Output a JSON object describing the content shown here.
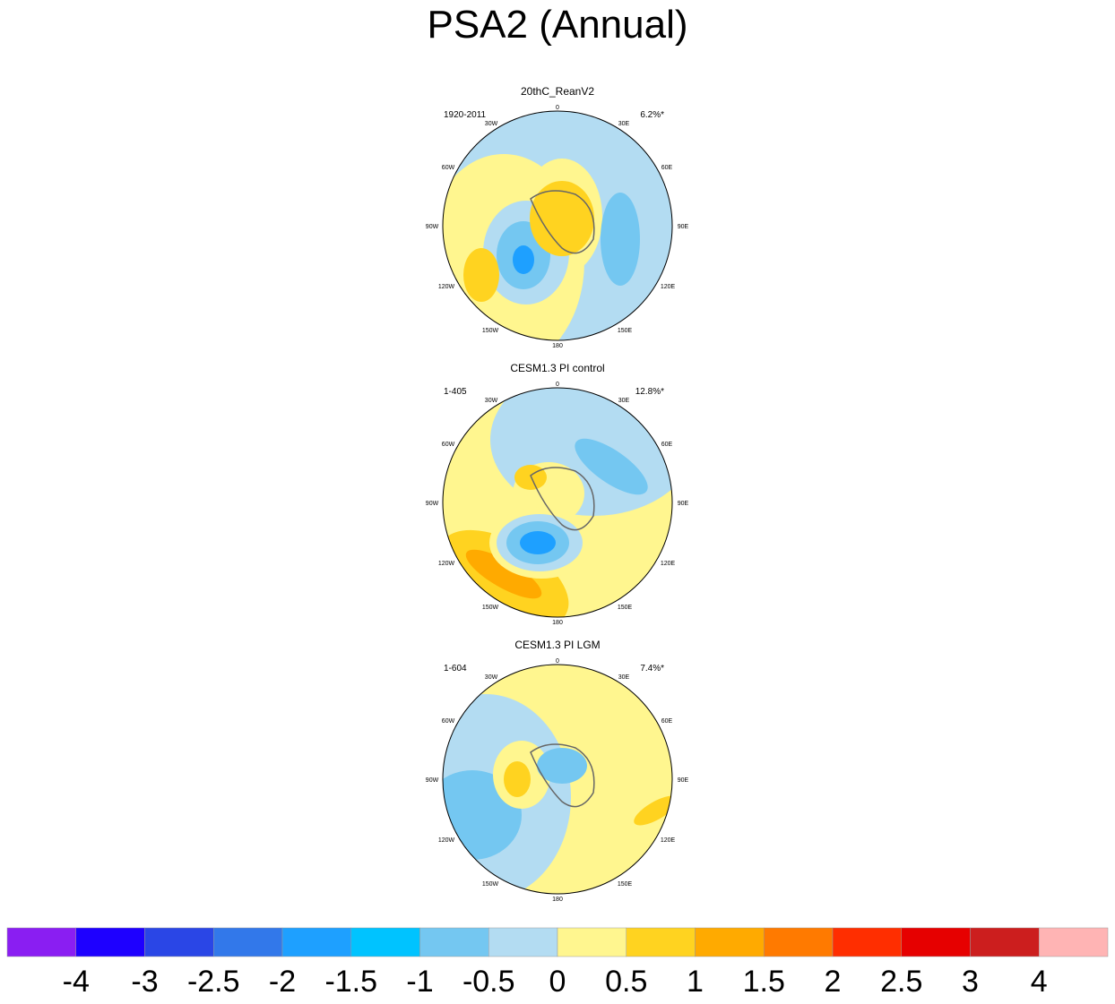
{
  "title": "PSA2 (Annual)",
  "panels": [
    {
      "title": "20thC_ReanV2",
      "period": "1920-2011",
      "variance": "6.2%*",
      "longitudes": [
        "0",
        "30E",
        "60E",
        "90E",
        "120E",
        "150E",
        "180",
        "150W",
        "120W",
        "90W",
        "60W",
        "30W"
      ]
    },
    {
      "title": "CESM1.3 PI control",
      "period": "1-405",
      "variance": "12.8%*",
      "longitudes": [
        "0",
        "30E",
        "60E",
        "90E",
        "120E",
        "150E",
        "180",
        "150W",
        "120W",
        "90W",
        "60W",
        "30W"
      ]
    },
    {
      "title": "CESM1.3 PI LGM",
      "period": "1-604",
      "variance": "7.4%*",
      "longitudes": [
        "0",
        "30E",
        "60E",
        "90E",
        "120E",
        "150E",
        "180",
        "150W",
        "120W",
        "90W",
        "60W",
        "30W"
      ]
    }
  ],
  "colorbar": {
    "labels": [
      "-4",
      "-3",
      "-2.5",
      "-2",
      "-1.5",
      "-1",
      "-0.5",
      "0",
      "0.5",
      "1",
      "1.5",
      "2",
      "2.5",
      "3",
      "4"
    ],
    "colors": [
      "#8a1ef2",
      "#1e00ff",
      "#2a46e6",
      "#3278ea",
      "#1ea0ff",
      "#00c3ff",
      "#74c7f1",
      "#b3dcf2",
      "#fff68f",
      "#ffd320",
      "#ffaa00",
      "#ff7a00",
      "#ff2e00",
      "#e60000",
      "#cc1e1e",
      "#ffb4b4"
    ]
  }
}
